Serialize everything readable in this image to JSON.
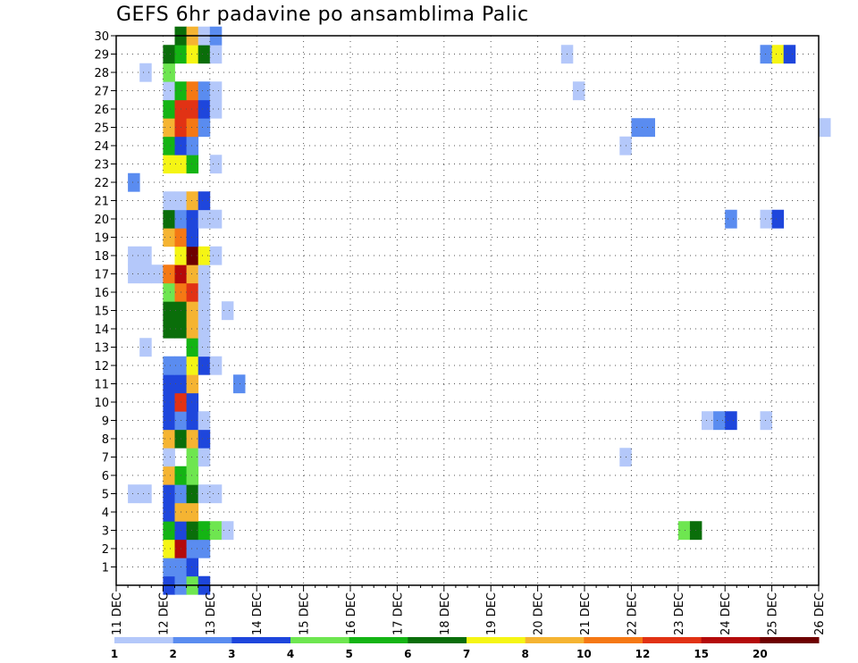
{
  "chart_data": {
    "type": "heatmap",
    "title": "GEFS 6hr padavine po ansamblima Palic",
    "xlabel": "",
    "ylabel": "",
    "x_tick_labels": [
      "11 DEC",
      "12 DEC",
      "13 DEC",
      "14 DEC",
      "15 DEC",
      "16 DEC",
      "17 DEC",
      "18 DEC",
      "19 DEC",
      "20 DEC",
      "21 DEC",
      "22 DEC",
      "23 DEC",
      "24 DEC",
      "25 DEC",
      "26 DEC"
    ],
    "xlim": [
      "11 DEC 00Z",
      "26 DEC 00Z"
    ],
    "time_step_hours": 6,
    "y_tick_labels": [
      "1",
      "2",
      "3",
      "4",
      "5",
      "6",
      "7",
      "8",
      "9",
      "10",
      "11",
      "12",
      "13",
      "14",
      "15",
      "16",
      "17",
      "18",
      "19",
      "20",
      "21",
      "22",
      "23",
      "24",
      "25",
      "26",
      "27",
      "28",
      "29",
      "30"
    ],
    "ylim": [
      0,
      30
    ],
    "grid": true,
    "colorbar": {
      "placement": "bottom",
      "labels": [
        "1",
        "2",
        "3",
        "4",
        "5",
        "6",
        "7",
        "8",
        "10",
        "12",
        "15",
        "20"
      ],
      "colors": [
        "#b4c8fa",
        "#5a8cf0",
        "#1e46dc",
        "#6ee650",
        "#14b414",
        "#0a6e0a",
        "#f5f514",
        "#f5b432",
        "#f57814",
        "#e13214",
        "#b40a0a",
        "#6e0000"
      ]
    },
    "cells": [
      [
        12.0,
        0,
        2
      ],
      [
        12.25,
        0,
        1
      ],
      [
        12.5,
        0,
        3
      ],
      [
        12.75,
        0,
        2
      ],
      [
        12.0,
        1,
        1
      ],
      [
        12.25,
        1,
        1
      ],
      [
        12.5,
        1,
        2
      ],
      [
        12.0,
        2,
        6
      ],
      [
        12.25,
        2,
        10
      ],
      [
        12.5,
        2,
        1
      ],
      [
        12.75,
        2,
        1
      ],
      [
        12.0,
        3,
        4
      ],
      [
        12.25,
        3,
        2
      ],
      [
        12.5,
        3,
        5
      ],
      [
        12.75,
        3,
        4
      ],
      [
        13.0,
        3,
        3
      ],
      [
        13.25,
        3,
        0
      ],
      [
        23.0,
        3,
        3
      ],
      [
        23.25,
        3,
        5
      ],
      [
        12.0,
        4,
        2
      ],
      [
        12.25,
        4,
        7
      ],
      [
        12.5,
        4,
        7
      ],
      [
        11.25,
        5,
        0
      ],
      [
        11.5,
        5,
        0
      ],
      [
        12.0,
        5,
        2
      ],
      [
        12.25,
        5,
        1
      ],
      [
        12.5,
        5,
        5
      ],
      [
        12.75,
        5,
        0
      ],
      [
        13.0,
        5,
        0
      ],
      [
        12.0,
        6,
        7
      ],
      [
        12.25,
        6,
        4
      ],
      [
        12.5,
        6,
        3
      ],
      [
        12.0,
        7,
        0
      ],
      [
        12.5,
        7,
        3
      ],
      [
        12.75,
        7,
        0
      ],
      [
        21.75,
        7,
        0
      ],
      [
        12.0,
        8,
        7
      ],
      [
        12.25,
        8,
        5
      ],
      [
        12.5,
        8,
        7
      ],
      [
        12.75,
        8,
        2
      ],
      [
        12.0,
        9,
        2
      ],
      [
        12.25,
        9,
        1
      ],
      [
        12.5,
        9,
        2
      ],
      [
        12.75,
        9,
        0
      ],
      [
        23.5,
        9,
        0
      ],
      [
        23.75,
        9,
        1
      ],
      [
        24.0,
        9,
        2
      ],
      [
        24.75,
        9,
        0
      ],
      [
        12.0,
        10,
        2
      ],
      [
        12.25,
        10,
        9
      ],
      [
        12.5,
        10,
        2
      ],
      [
        12.0,
        11,
        2
      ],
      [
        12.25,
        11,
        2
      ],
      [
        12.5,
        11,
        7
      ],
      [
        13.5,
        11,
        1
      ],
      [
        12.0,
        12,
        1
      ],
      [
        12.25,
        12,
        1
      ],
      [
        12.5,
        12,
        6
      ],
      [
        12.75,
        12,
        2
      ],
      [
        13.0,
        12,
        0
      ],
      [
        11.5,
        13,
        0
      ],
      [
        12.5,
        13,
        4
      ],
      [
        12.75,
        13,
        0
      ],
      [
        12.0,
        14,
        5
      ],
      [
        12.25,
        14,
        5
      ],
      [
        12.5,
        14,
        7
      ],
      [
        12.75,
        14,
        0
      ],
      [
        12.0,
        15,
        5
      ],
      [
        12.25,
        15,
        5
      ],
      [
        12.5,
        15,
        7
      ],
      [
        12.75,
        15,
        0
      ],
      [
        13.25,
        15,
        0
      ],
      [
        12.0,
        16,
        3
      ],
      [
        12.25,
        16,
        8
      ],
      [
        12.5,
        16,
        9
      ],
      [
        12.75,
        16,
        0
      ],
      [
        11.25,
        17,
        0
      ],
      [
        11.5,
        17,
        0
      ],
      [
        11.75,
        17,
        0
      ],
      [
        12.0,
        17,
        8
      ],
      [
        12.25,
        17,
        10
      ],
      [
        12.5,
        17,
        7
      ],
      [
        12.75,
        17,
        0
      ],
      [
        11.25,
        18,
        0
      ],
      [
        11.5,
        18,
        0
      ],
      [
        12.25,
        18,
        6
      ],
      [
        12.5,
        18,
        11
      ],
      [
        12.75,
        18,
        6
      ],
      [
        13.0,
        18,
        0
      ],
      [
        12.0,
        19,
        7
      ],
      [
        12.25,
        19,
        8
      ],
      [
        12.5,
        19,
        2
      ],
      [
        12.0,
        20,
        5
      ],
      [
        12.25,
        20,
        1
      ],
      [
        12.5,
        20,
        2
      ],
      [
        12.75,
        20,
        0
      ],
      [
        13.0,
        20,
        0
      ],
      [
        24.0,
        20,
        1
      ],
      [
        24.75,
        20,
        0
      ],
      [
        25.0,
        20,
        2
      ],
      [
        12.0,
        21,
        0
      ],
      [
        12.25,
        21,
        0
      ],
      [
        12.5,
        21,
        7
      ],
      [
        12.75,
        21,
        2
      ],
      [
        11.25,
        22,
        1
      ],
      [
        12.0,
        23,
        6
      ],
      [
        12.25,
        23,
        6
      ],
      [
        12.5,
        23,
        4
      ],
      [
        13.0,
        23,
        0
      ],
      [
        12.0,
        24,
        4
      ],
      [
        12.25,
        24,
        2
      ],
      [
        12.5,
        24,
        1
      ],
      [
        21.75,
        24,
        0
      ],
      [
        12.0,
        25,
        7
      ],
      [
        12.25,
        25,
        9
      ],
      [
        12.5,
        25,
        8
      ],
      [
        12.75,
        25,
        1
      ],
      [
        22.0,
        25,
        1
      ],
      [
        22.25,
        25,
        1
      ],
      [
        26.0,
        25,
        0
      ],
      [
        12.0,
        26,
        4
      ],
      [
        12.25,
        26,
        9
      ],
      [
        12.5,
        26,
        9
      ],
      [
        12.75,
        26,
        2
      ],
      [
        13.0,
        26,
        0
      ],
      [
        12.0,
        27,
        0
      ],
      [
        12.25,
        27,
        4
      ],
      [
        12.5,
        27,
        8
      ],
      [
        12.75,
        27,
        1
      ],
      [
        13.0,
        27,
        0
      ],
      [
        20.75,
        27,
        0
      ],
      [
        11.5,
        28,
        0
      ],
      [
        12.0,
        28,
        3
      ],
      [
        12.0,
        29,
        5
      ],
      [
        12.25,
        29,
        4
      ],
      [
        12.5,
        29,
        6
      ],
      [
        12.75,
        29,
        5
      ],
      [
        13.0,
        29,
        0
      ],
      [
        20.5,
        29,
        0
      ],
      [
        24.75,
        29,
        1
      ],
      [
        25.0,
        29,
        6
      ],
      [
        25.25,
        29,
        2
      ],
      [
        12.25,
        30,
        5
      ],
      [
        12.5,
        30,
        7
      ],
      [
        12.75,
        30,
        0
      ],
      [
        13.0,
        30,
        1
      ]
    ]
  }
}
